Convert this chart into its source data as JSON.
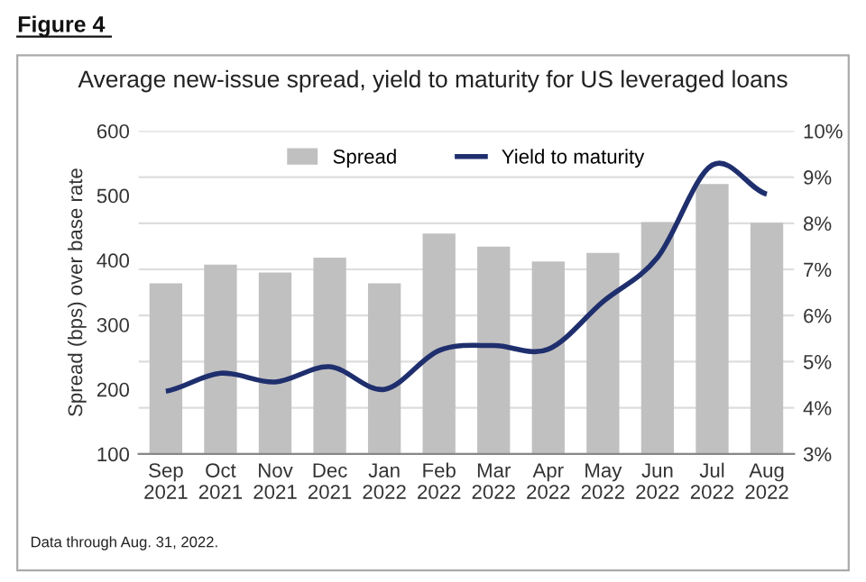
{
  "chart_data": {
    "type": "bar",
    "title": "Average new-issue spread, yield to maturity for US leveraged loans",
    "subtitle": "Figure 4",
    "categories": [
      "Sep\n2021",
      "Oct\n2021",
      "Nov\n2021",
      "Dec\n2021",
      "Jan\n2022",
      "Feb\n2022",
      "Mar\n2022",
      "Apr\n2022",
      "May\n2022",
      "Jun\n2022",
      "Jul\n2022",
      "Aug\n2022"
    ],
    "series": [
      {
        "name": "Spread",
        "color": "#c0c0c0",
        "values": [
          364,
          393,
          381,
          404,
          364,
          441,
          421,
          398,
          411,
          459,
          518,
          458
        ]
      },
      {
        "name": "Yield to maturity",
        "type": "line",
        "axis": "y2",
        "color": "#1f2f6e",
        "values": [
          4.36,
          4.75,
          4.56,
          4.89,
          4.4,
          5.24,
          5.35,
          5.27,
          6.3,
          7.26,
          9.26,
          8.63
        ]
      }
    ],
    "ylabel": "Spread (bps) over base rate",
    "ylim": [
      100,
      600
    ],
    "yticks": [
      100,
      200,
      300,
      400,
      500,
      600
    ],
    "y2lim": [
      3,
      10
    ],
    "y2ticks": [
      {
        "value": 3,
        "label": "3%"
      },
      {
        "value": 4,
        "label": "4%"
      },
      {
        "value": 5,
        "label": "5%"
      },
      {
        "value": 6,
        "label": "6%"
      },
      {
        "value": 7,
        "label": "7%"
      },
      {
        "value": 8,
        "label": "8%"
      },
      {
        "value": 9,
        "label": "9%"
      },
      {
        "value": 10,
        "label": "10%"
      }
    ],
    "grid": "y",
    "legend": "top",
    "marker": "none",
    "line_style": "solid",
    "annotations": [
      "Data through Aug. 31, 2022."
    ]
  }
}
